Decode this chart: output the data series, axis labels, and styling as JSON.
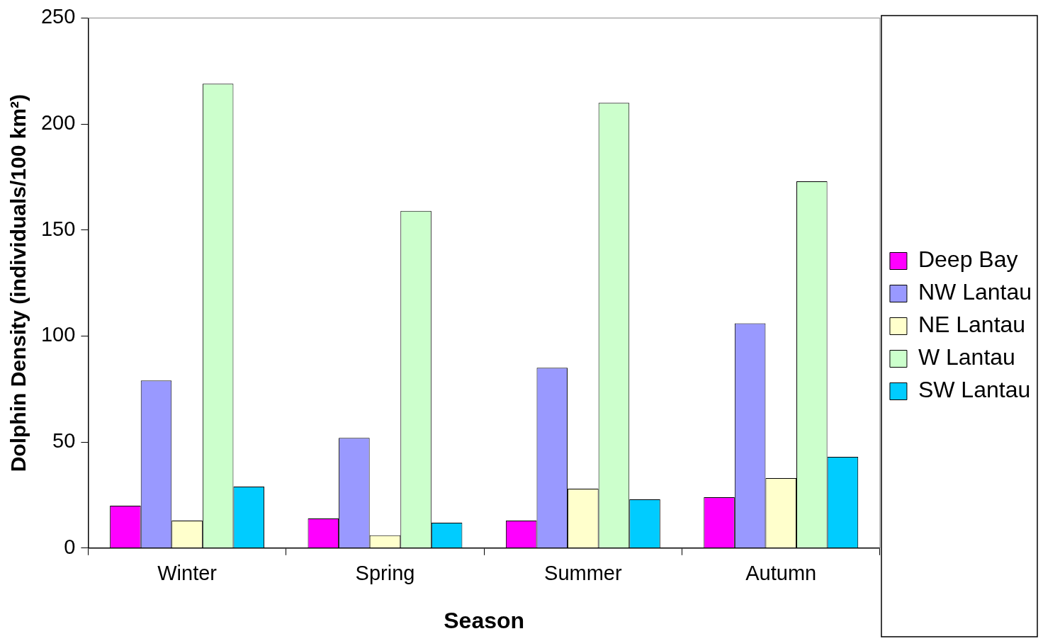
{
  "chart_data": {
    "type": "bar",
    "xlabel": "Season",
    "ylabel": "Dolphin Density (individuals/100 km²)",
    "categories": [
      "Winter",
      "Spring",
      "Summer",
      "Autumn"
    ],
    "series": [
      {
        "name": "Deep Bay",
        "color": "#ff00ff",
        "values": [
          20,
          14,
          13,
          24
        ]
      },
      {
        "name": "NW Lantau",
        "color": "#9999ff",
        "values": [
          79,
          52,
          85,
          106
        ]
      },
      {
        "name": "NE Lantau",
        "color": "#ffffcc",
        "values": [
          13,
          6,
          28,
          33
        ]
      },
      {
        "name": "W Lantau",
        "color": "#ccffcc",
        "values": [
          219,
          159,
          210,
          173
        ]
      },
      {
        "name": "SW Lantau",
        "color": "#00ccff",
        "values": [
          29,
          12,
          23,
          43
        ]
      }
    ],
    "ylim": [
      0,
      250
    ],
    "yticks": [
      0,
      50,
      100,
      150,
      200,
      250
    ],
    "grid": false,
    "legend": "right"
  }
}
